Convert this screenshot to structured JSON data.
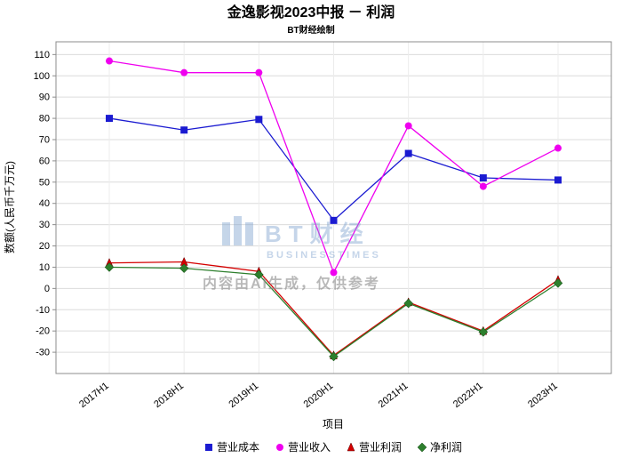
{
  "title": "金逸影视2023中报 － 利润",
  "subtitle": "BT财经绘制",
  "watermark": {
    "logo": "bt-bars-icon",
    "brand": "BT财经",
    "brand_sub": "BUSINESSTIMES",
    "disclaimer": "内容由AI生成，仅供参考"
  },
  "chart_data": {
    "type": "line",
    "title": "金逸影视2023中报 － 利润",
    "subtitle": "BT财经绘制",
    "categories": [
      "2017H1",
      "2018H1",
      "2019H1",
      "2020H1",
      "2021H1",
      "2022H1",
      "2023H1"
    ],
    "series": [
      {
        "name": "营业成本",
        "marker": "square",
        "color": "#1b1bd1",
        "values": [
          80,
          74.5,
          79.5,
          32,
          63.5,
          52,
          51
        ]
      },
      {
        "name": "营业收入",
        "marker": "circle",
        "color": "#ef00ef",
        "values": [
          107,
          101.5,
          101.5,
          7.5,
          76.5,
          48,
          66
        ]
      },
      {
        "name": "营业利润",
        "marker": "triangle",
        "color": "#d40000",
        "values": [
          12,
          12.5,
          8,
          -31.5,
          -6.5,
          -20,
          4
        ]
      },
      {
        "name": "净利润",
        "marker": "diamond",
        "color": "#2d7f2d",
        "values": [
          10,
          9.5,
          6.5,
          -32,
          -7,
          -20.5,
          2.5
        ]
      }
    ],
    "xlabel": "项目",
    "ylabel": "数额(人民币千万元)",
    "ylim": [
      -40,
      116
    ],
    "yticks": [
      -30,
      -20,
      -10,
      0,
      10,
      20,
      30,
      40,
      50,
      60,
      70,
      80,
      90,
      100,
      110
    ],
    "grid": true,
    "legend_position": "bottom"
  }
}
